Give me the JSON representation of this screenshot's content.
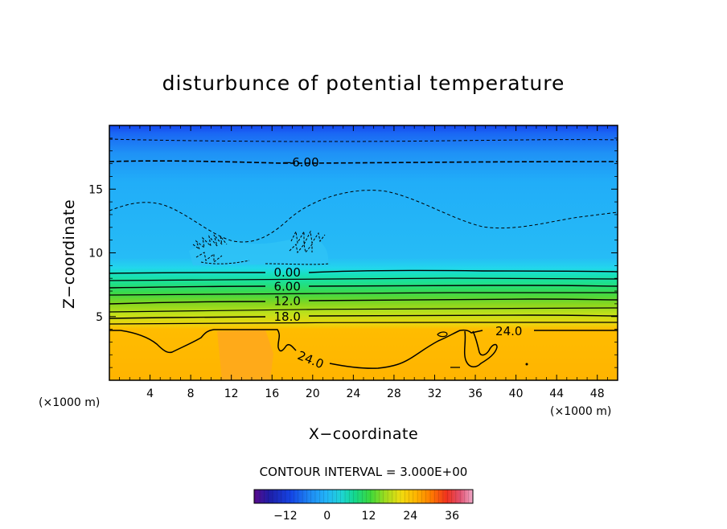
{
  "chart_data": {
    "type": "heatmap",
    "title": "disturbunce of potential temperature",
    "xlabel": "X−coordinate",
    "ylabel": "Z−coordinate",
    "x_unit": "(×1000 m)",
    "y_unit": "(×1000 m)",
    "xlim": [
      0,
      50
    ],
    "ylim": [
      0,
      20
    ],
    "x_ticks": [
      4,
      8,
      12,
      16,
      20,
      24,
      28,
      32,
      36,
      40,
      44,
      48
    ],
    "y_ticks": [
      5,
      10,
      15
    ],
    "contour_interval_text": "CONTOUR INTERVAL = 3.000E+00",
    "colorbar": {
      "range": [
        -21,
        42
      ],
      "ticks": [
        -12,
        0,
        12,
        24,
        36
      ],
      "tick_labels": [
        "−12",
        "0",
        "12",
        "24",
        "36"
      ]
    },
    "field": {
      "description_levels": "values by height in data units",
      "height": [
        0,
        4,
        5,
        6,
        7,
        8,
        8.8,
        10,
        12,
        15,
        17.5,
        19,
        20
      ],
      "value": [
        27,
        26,
        20,
        15,
        10,
        4,
        0,
        -1,
        -2,
        -3,
        -6,
        -9,
        -12
      ]
    },
    "contour_labels": [
      {
        "text": "−6.00",
        "x": 18.8,
        "y": 17.1
      },
      {
        "text": "0.00",
        "x": 17.5,
        "y": 8.45
      },
      {
        "text": "6.00",
        "x": 17.5,
        "y": 7.35
      },
      {
        "text": "12.0",
        "x": 17.5,
        "y": 6.2
      },
      {
        "text": "18.0",
        "x": 17.5,
        "y": 5.0
      },
      {
        "text": "24.0",
        "x": 19.8,
        "y": 1.6
      },
      {
        "text": "24.0",
        "x": 39.3,
        "y": 3.85
      }
    ],
    "contour_levels": [
      -9,
      -6,
      -3,
      0,
      3,
      6,
      9,
      12,
      15,
      18,
      21,
      24
    ],
    "grid": false,
    "legend": "colorbar bottom"
  }
}
